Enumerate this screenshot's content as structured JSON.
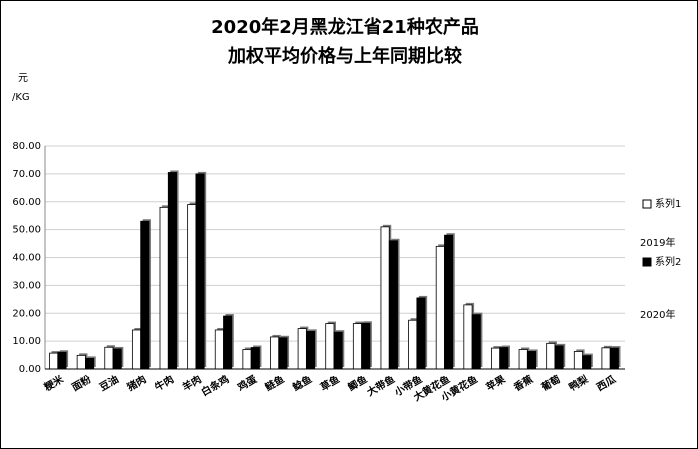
{
  "chart_data": {
    "type": "bar",
    "title": [
      "2020年2月黑龙江省21种农产品",
      "加权平均价格与上年同期比较"
    ],
    "y_label": [
      "元",
      "/KG"
    ],
    "annotations": [
      "2019年",
      "2020年"
    ],
    "categories": [
      "粳米",
      "面粉",
      "豆油",
      "猪肉",
      "牛肉",
      "羊肉",
      "白条鸡",
      "鸡蛋",
      "鲢鱼",
      "鲶鱼",
      "草鱼",
      "鲫鱼",
      "大带鱼",
      "小带鱼",
      "大黄花鱼",
      "小黄花鱼",
      "苹果",
      "香蕉",
      "葡萄",
      "鸭梨",
      "西瓜"
    ],
    "series": [
      {
        "name": "系列1",
        "color": "#ffffff",
        "values": [
          5.7,
          4.9,
          7.8,
          14,
          58,
          59,
          14,
          7,
          11.5,
          14.5,
          16.3,
          16.3,
          51,
          17.5,
          44,
          23,
          7.5,
          7,
          9.2,
          6.3,
          7.6
        ]
      },
      {
        "name": "系列2",
        "color": "#000000",
        "values": [
          6,
          3.8,
          7.2,
          53,
          70.5,
          70,
          19,
          7.7,
          11.2,
          13.5,
          13.2,
          16.4,
          46,
          25.5,
          48,
          19.5,
          7.7,
          6.3,
          8.3,
          4.8,
          7.5
        ]
      }
    ],
    "ylim": [
      0,
      80
    ],
    "yticks": [
      {
        "value": 0,
        "label": "0.00"
      },
      {
        "value": 10,
        "label": "10.00"
      },
      {
        "value": 20,
        "label": "20.00"
      },
      {
        "value": 30,
        "label": "30.00"
      },
      {
        "value": 40,
        "label": "40.00"
      },
      {
        "value": 50,
        "label": "50.00"
      },
      {
        "value": 60,
        "label": "60.00"
      },
      {
        "value": 70,
        "label": "70.00"
      },
      {
        "value": 80,
        "label": "80.00"
      }
    ],
    "grid": true
  }
}
